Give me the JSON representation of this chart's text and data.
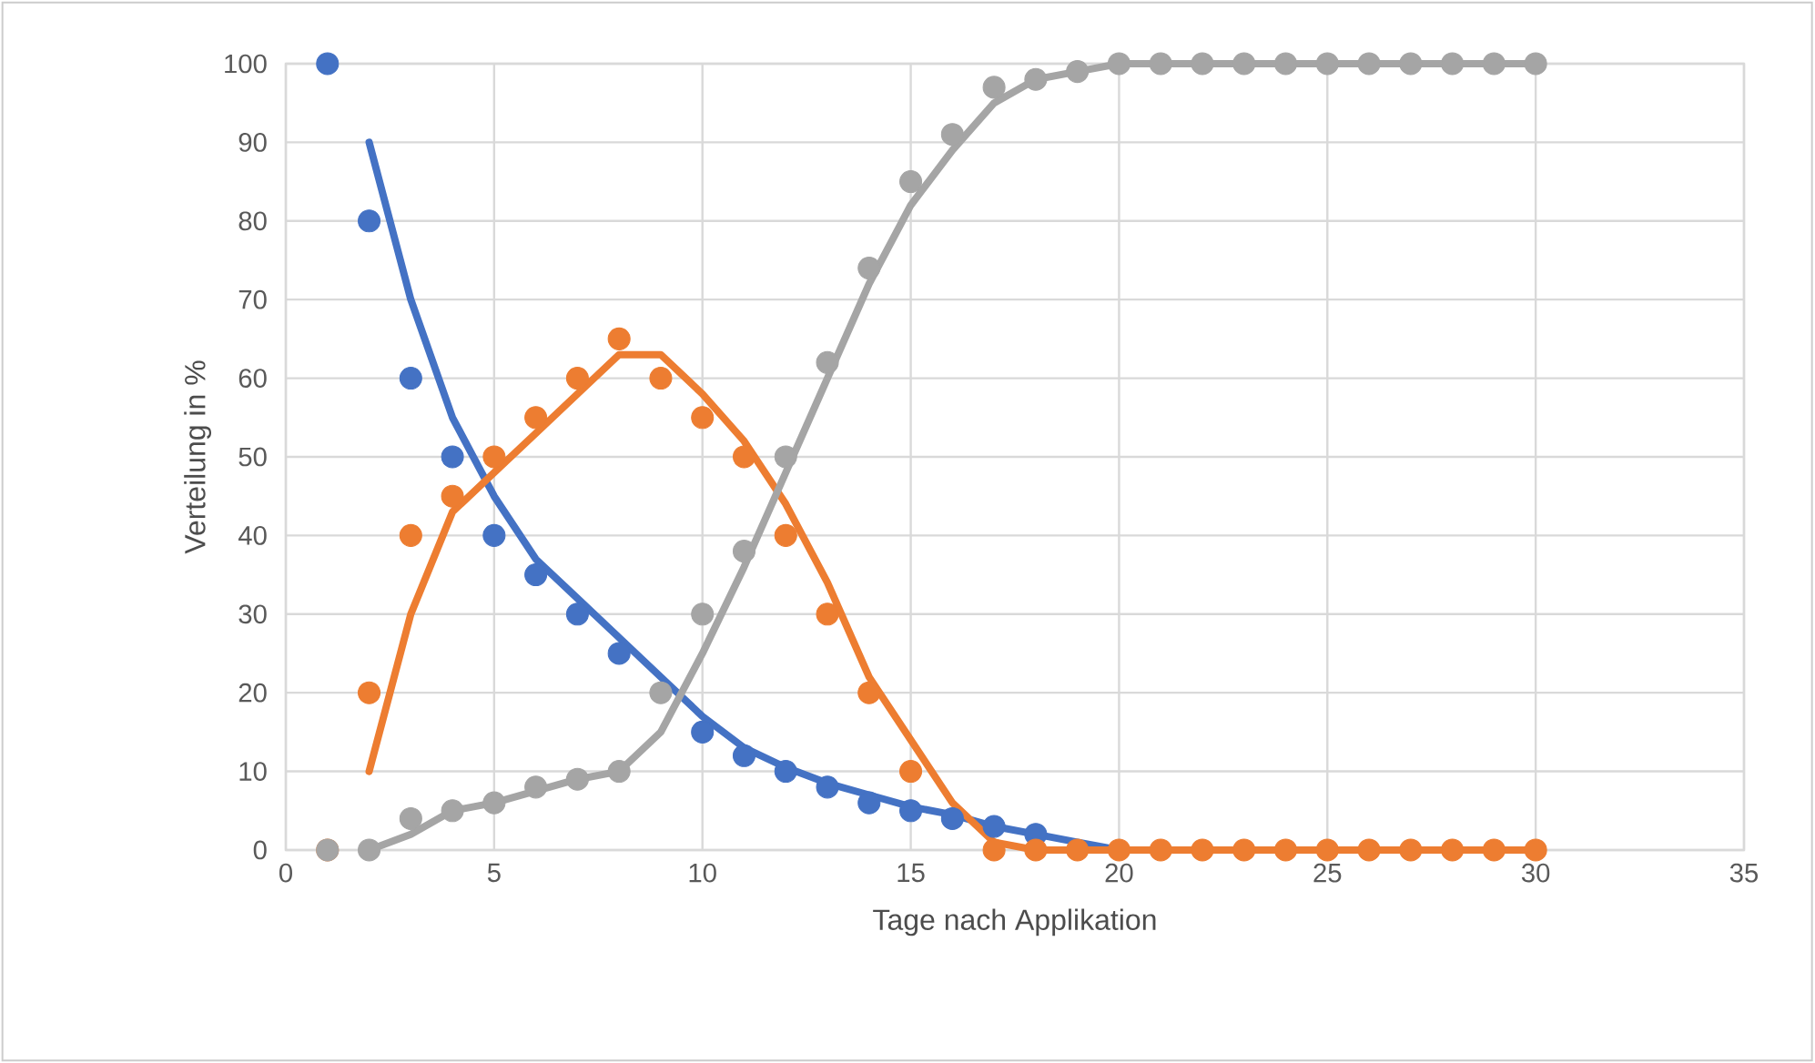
{
  "chart_data": {
    "type": "scatter",
    "xlabel": "Tage nach Applikation",
    "ylabel": "Verteilung in %",
    "xlim": [
      0,
      35
    ],
    "xticks": [
      0,
      5,
      10,
      15,
      20,
      25,
      30,
      35
    ],
    "ylim": [
      0,
      100
    ],
    "yticks": [
      0,
      10,
      20,
      30,
      40,
      50,
      60,
      70,
      80,
      90,
      100
    ],
    "grid": true,
    "series": [
      {
        "type": "line",
        "marker": "none",
        "color": "#4472c4",
        "x": [
          2,
          3,
          4,
          5,
          6,
          7,
          8,
          9,
          10,
          11,
          12,
          13,
          14,
          15,
          16,
          17,
          18,
          19,
          20
        ],
        "values": [
          90,
          70,
          55,
          45,
          37,
          32,
          27,
          22,
          17,
          13,
          10.5,
          8.5,
          7,
          5.5,
          4.5,
          3,
          2,
          1,
          0
        ]
      },
      {
        "type": "line",
        "marker": "none",
        "color": "#ed7d31",
        "x": [
          2,
          3,
          4,
          5,
          6,
          7,
          8,
          9,
          10,
          11,
          12,
          13,
          14,
          15,
          16,
          17,
          18,
          19,
          20,
          21,
          22,
          23,
          24,
          25,
          26,
          27,
          28,
          29,
          30
        ],
        "values": [
          10,
          30,
          43,
          48,
          53,
          58,
          63,
          63,
          58,
          52,
          44,
          34,
          22,
          14,
          6,
          1,
          0,
          0,
          0,
          0,
          0,
          0,
          0,
          0,
          0,
          0,
          0,
          0,
          0
        ]
      },
      {
        "type": "line",
        "marker": "none",
        "color": "#a5a5a5",
        "x": [
          2,
          3,
          4,
          5,
          6,
          7,
          8,
          9,
          10,
          11,
          12,
          13,
          14,
          15,
          16,
          17,
          18,
          19,
          20,
          21,
          22,
          23,
          24,
          25,
          26,
          27,
          28,
          29,
          30
        ],
        "values": [
          0,
          2,
          5,
          6,
          7.5,
          9,
          10,
          15,
          25,
          36,
          48,
          60,
          72,
          82,
          89,
          95,
          98,
          99,
          100,
          100,
          100,
          100,
          100,
          100,
          100,
          100,
          100,
          100,
          100
        ]
      },
      {
        "marker": "circle",
        "color": "#4472c4",
        "x": [
          1,
          2,
          3,
          4,
          5,
          6,
          7,
          8,
          9,
          10,
          11,
          12,
          13,
          14,
          15,
          16,
          17,
          18
        ],
        "values": [
          100,
          80,
          60,
          50,
          40,
          35,
          30,
          25,
          null,
          15,
          12,
          10,
          8,
          6,
          5,
          4,
          3,
          2
        ]
      },
      {
        "marker": "circle",
        "color": "#ed7d31",
        "x": [
          1,
          2,
          3,
          4,
          5,
          6,
          7,
          8,
          9,
          10,
          11,
          12,
          13,
          14,
          15,
          17,
          18,
          19,
          20,
          21,
          22,
          23,
          24,
          25,
          26,
          27,
          28,
          29,
          30
        ],
        "values": [
          0,
          20,
          40,
          45,
          50,
          55,
          60,
          65,
          60,
          55,
          50,
          40,
          30,
          20,
          10,
          0,
          0,
          0,
          0,
          0,
          0,
          0,
          0,
          0,
          0,
          0,
          0,
          0,
          0
        ]
      },
      {
        "marker": "circle",
        "color": "#a5a5a5",
        "x": [
          1,
          2,
          3,
          4,
          5,
          6,
          7,
          8,
          9,
          10,
          11,
          12,
          13,
          14,
          15,
          16,
          17,
          18,
          19,
          20,
          21,
          22,
          23,
          24,
          25,
          26,
          27,
          28,
          29,
          30
        ],
        "values": [
          0,
          0,
          4,
          5,
          6,
          8,
          9,
          10,
          20,
          30,
          38,
          50,
          62,
          74,
          85,
          91,
          97,
          98,
          99,
          100,
          100,
          100,
          100,
          100,
          100,
          100,
          100,
          100,
          100,
          100
        ]
      }
    ]
  }
}
